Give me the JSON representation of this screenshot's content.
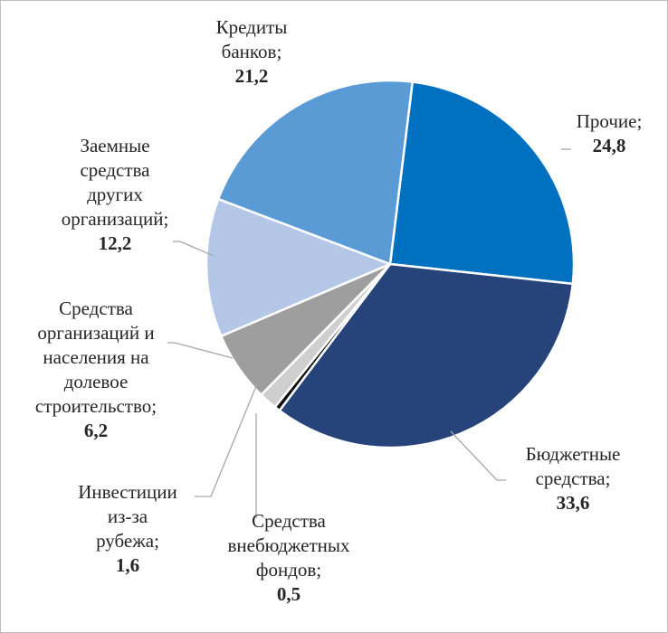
{
  "chart_data": {
    "type": "pie",
    "title": "",
    "slices": [
      {
        "label_lines": [
          "Прочие;"
        ],
        "value_text": "24,8",
        "value": 24.8,
        "color": "#0070c0"
      },
      {
        "label_lines": [
          "Бюджетные",
          "средства;"
        ],
        "value_text": "33,6",
        "value": 33.6,
        "color": "#26447a"
      },
      {
        "label_lines": [
          "Средства",
          "внебюджетных",
          "фондов;"
        ],
        "value_text": "0,5",
        "value": 0.5,
        "color": "#0d0d0d"
      },
      {
        "label_lines": [
          "Инвестиции",
          "из-за",
          "рубежа;"
        ],
        "value_text": "1,6",
        "value": 1.6,
        "color": "#cfcfcf"
      },
      {
        "label_lines": [
          "Средства",
          "организаций и",
          "населения на",
          "долевое",
          "строительство;"
        ],
        "value_text": "6,2",
        "value": 6.2,
        "color": "#9e9e9e"
      },
      {
        "label_lines": [
          "Заемные",
          "средства",
          "других",
          "организаций;"
        ],
        "value_text": "12,2",
        "value": 12.2,
        "color": "#b4c7e7"
      },
      {
        "label_lines": [
          "Кредиты",
          "банков;"
        ],
        "value_text": "21,2",
        "value": 21.2,
        "color": "#5b9bd5"
      }
    ]
  }
}
